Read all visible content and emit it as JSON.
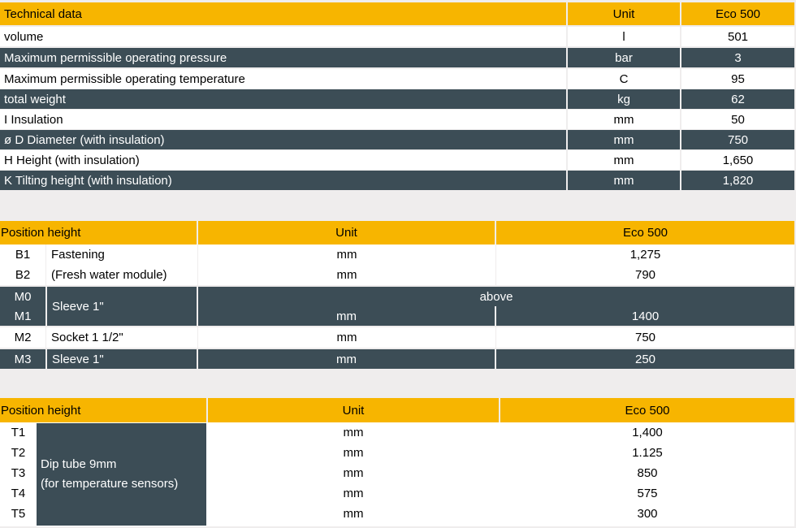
{
  "technical": {
    "header": {
      "label": "Technical data",
      "unit": "Unit",
      "model": "Eco 500"
    },
    "rows": [
      {
        "label": "volume",
        "unit": "l",
        "value": "501"
      },
      {
        "label": "Maximum permissible operating pressure",
        "unit": "bar",
        "value": "3"
      },
      {
        "label": "Maximum permissible operating temperature",
        "unit": "C",
        "value": "95"
      },
      {
        "label": "total weight",
        "unit": "kg",
        "value": "62"
      },
      {
        "label": "I Insulation",
        "unit": "mm",
        "value": "50"
      },
      {
        "label": "ø D Diameter (with insulation)",
        "unit": "mm",
        "value": "750"
      },
      {
        "label": "H Height (with insulation)",
        "unit": "mm",
        "value": "1,650"
      },
      {
        "label": "K Tilting height (with insulation)",
        "unit": "mm",
        "value": "1,820"
      }
    ]
  },
  "position1": {
    "header": {
      "label": "Position height",
      "unit": "Unit",
      "model": "Eco 500"
    },
    "rows": [
      {
        "code": "B1",
        "desc": "Fastening",
        "unit": "mm",
        "value": "1,275"
      },
      {
        "code": "B2",
        "desc": "(Fresh water module)",
        "unit": "mm",
        "value": "790"
      },
      {
        "code": "M0",
        "desc": "Sleeve 1\"",
        "unit": "",
        "value": "above"
      },
      {
        "code": "M1",
        "desc": "",
        "unit": "mm",
        "value": "1400"
      },
      {
        "code": "M2",
        "desc": "Socket 1 1/2\"",
        "unit": "mm",
        "value": "750"
      },
      {
        "code": "M3",
        "desc": "Sleeve 1\"",
        "unit": "mm",
        "value": "250"
      }
    ]
  },
  "position2": {
    "header": {
      "label": "Position height",
      "unit": "Unit",
      "model": "Eco 500"
    },
    "group_desc_line1": "Dip tube 9mm",
    "group_desc_line2": "(for temperature sensors)",
    "rows": [
      {
        "code": "T1",
        "unit": "mm",
        "value": "1,400"
      },
      {
        "code": "T2",
        "unit": "mm",
        "value": "1.125"
      },
      {
        "code": "T3",
        "unit": "mm",
        "value": "850"
      },
      {
        "code": "T4",
        "unit": "mm",
        "value": "575"
      },
      {
        "code": "T5",
        "unit": "mm",
        "value": "300"
      }
    ]
  },
  "colors": {
    "header": "#f7b500",
    "dark_row": "#3c4d56",
    "light_row": "#ffffff",
    "background": "#efeded"
  }
}
